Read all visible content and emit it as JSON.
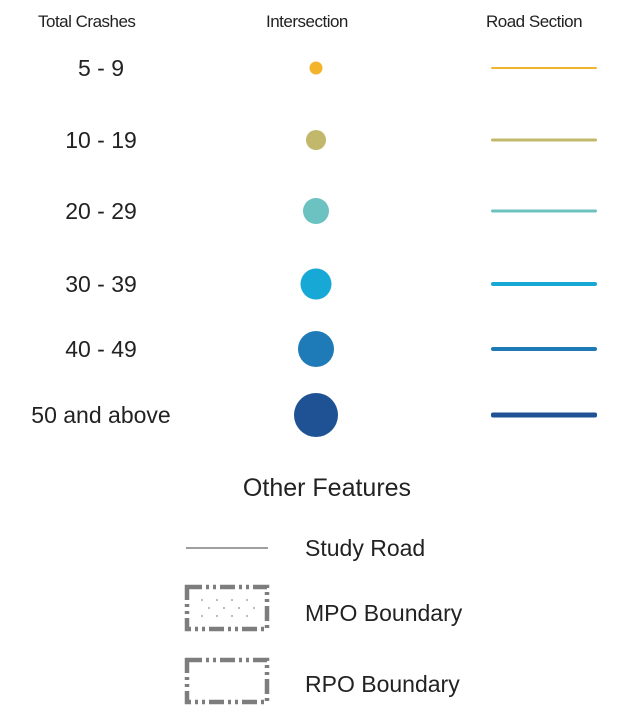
{
  "headers": {
    "total_crashes": "Total Crashes",
    "intersection": "Intersection",
    "road_section": "Road Section"
  },
  "classes": [
    {
      "label": "5 - 9",
      "color": "#f3b32b"
    },
    {
      "label": "10 - 19",
      "color": "#c2b86c"
    },
    {
      "label": "20 - 29",
      "color": "#6cc1c1"
    },
    {
      "label": "30 - 39",
      "color": "#17a8d6"
    },
    {
      "label": "40 - 49",
      "color": "#1e7bb8"
    },
    {
      "label": "50 and above",
      "color": "#1f5195"
    }
  ],
  "other_features": {
    "title": "Other Features",
    "items": [
      {
        "label": "Study Road",
        "icon": "solid-line-icon"
      },
      {
        "label": "MPO Boundary",
        "icon": "dashed-dotted-box-icon"
      },
      {
        "label": "RPO Boundary",
        "icon": "dashed-box-icon"
      }
    ]
  }
}
